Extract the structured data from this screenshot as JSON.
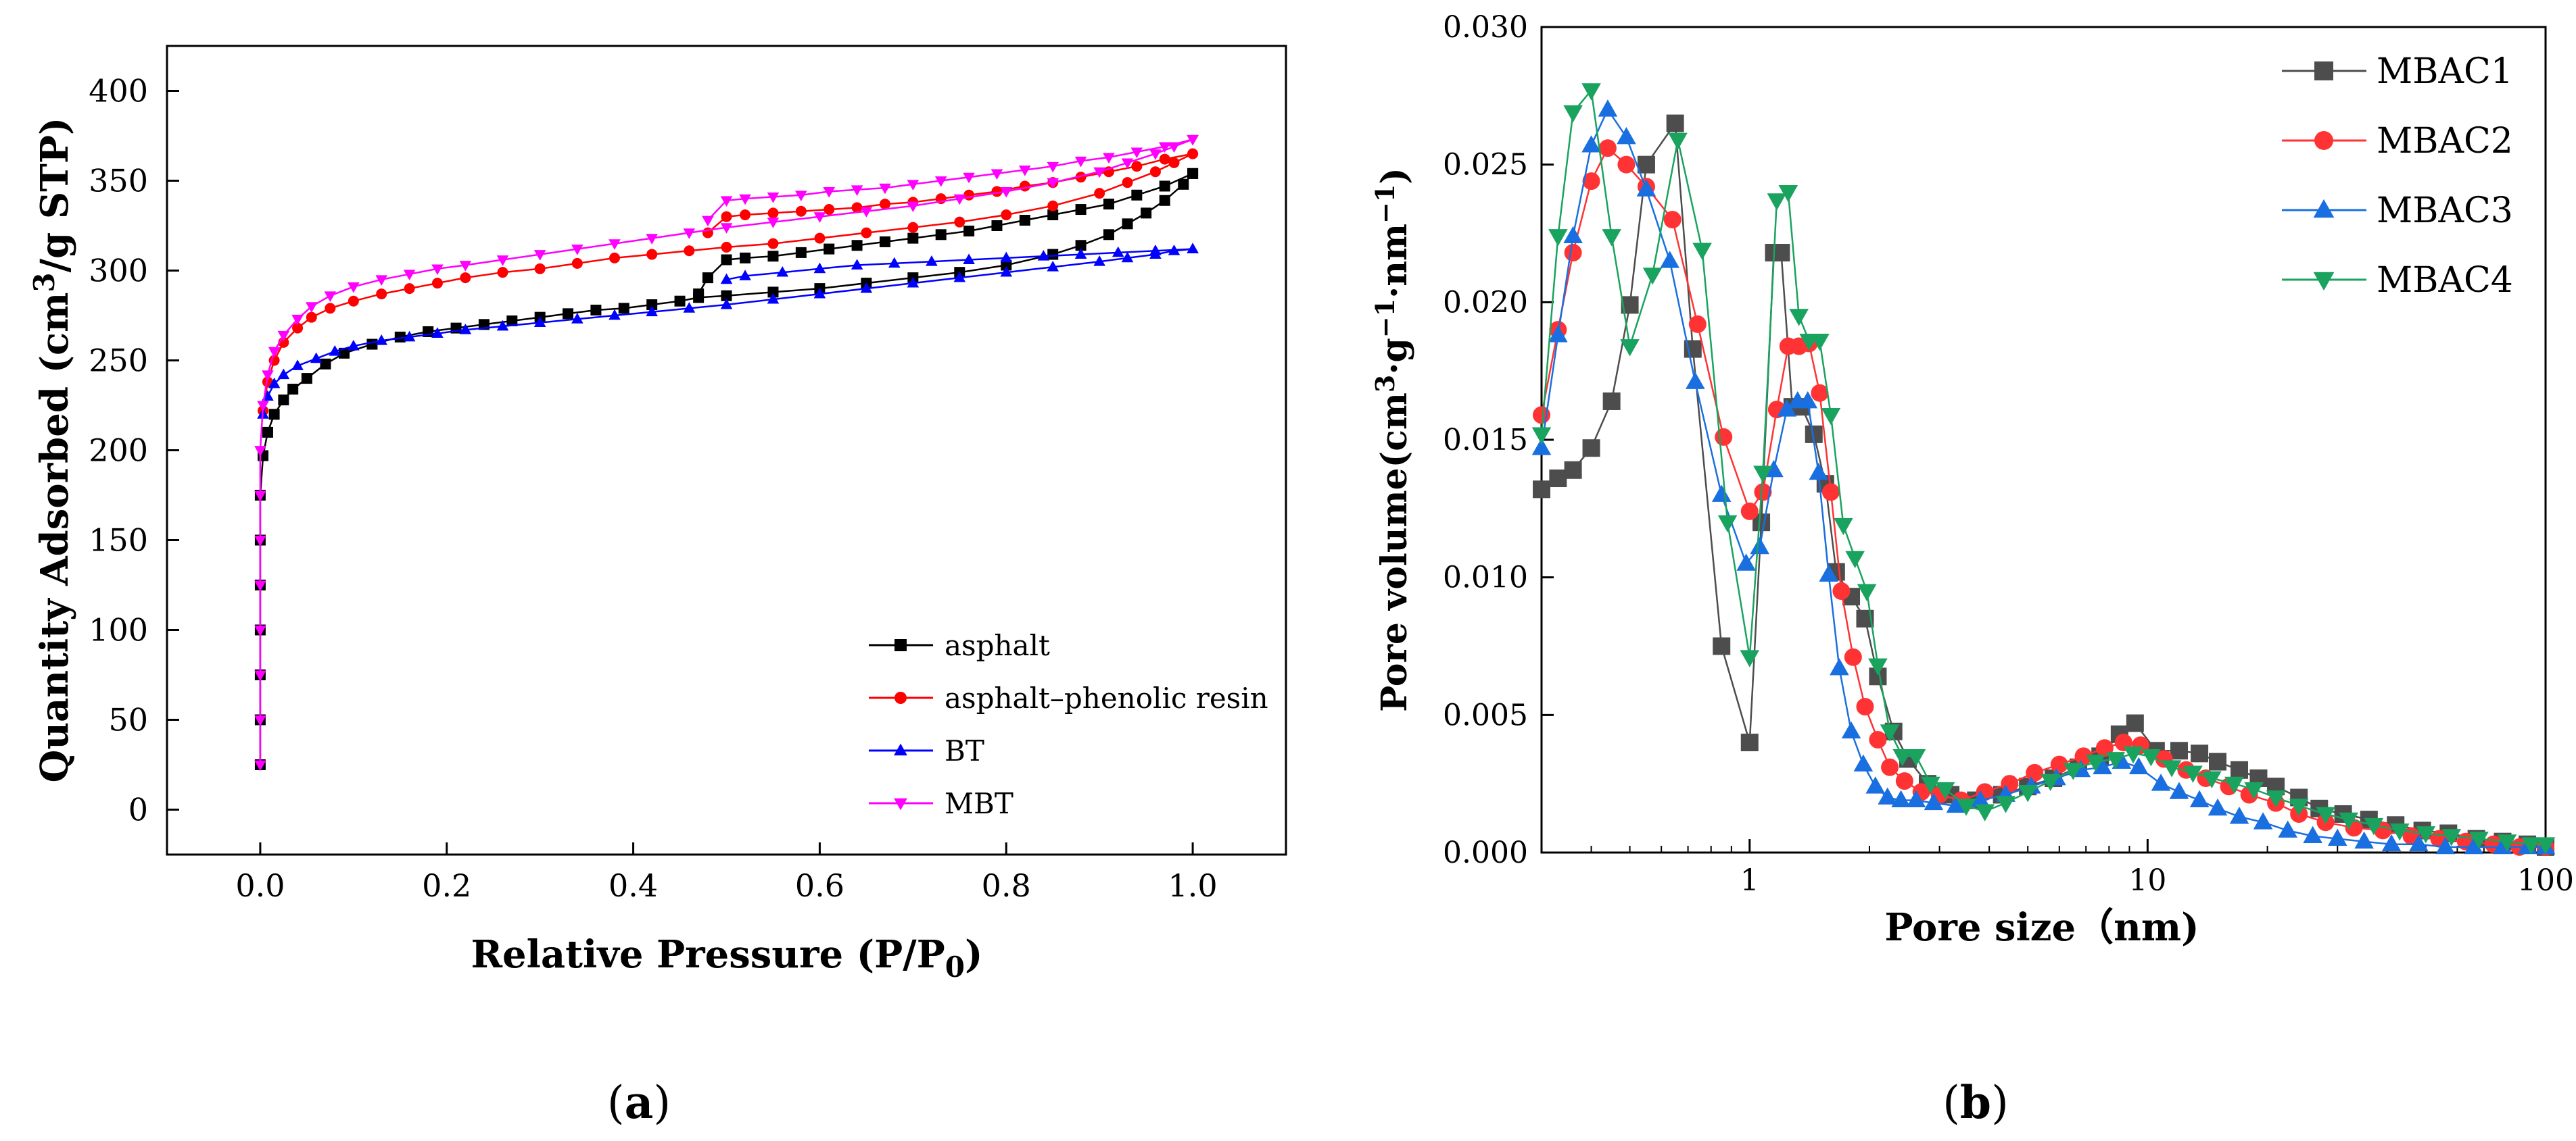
{
  "chart_data": [
    {
      "id": "a",
      "type": "line",
      "panel_label": "a",
      "xlabel": "Relative Pressure (P/P",
      "xlabel_sub": "0",
      "xlabel_end": ")",
      "ylabel": "Quantity Adsorbed (cm",
      "ylabel_sup": "3",
      "ylabel_end": "/g STP)",
      "xlim": [
        -0.1,
        1.1
      ],
      "ylim": [
        -25,
        425
      ],
      "xticks": [
        0.0,
        0.2,
        0.4,
        0.6,
        0.8,
        1.0
      ],
      "xtick_labels": [
        "0.0",
        "0.2",
        "0.4",
        "0.6",
        "0.8",
        "1.0"
      ],
      "yticks": [
        0,
        50,
        100,
        150,
        200,
        250,
        300,
        350,
        400
      ],
      "ytick_labels": [
        "0",
        "50",
        "100",
        "150",
        "200",
        "250",
        "300",
        "350",
        "400"
      ],
      "legend_position": "bottom-right",
      "series": [
        {
          "name": "asphalt",
          "color": "#000000",
          "marker": "square",
          "adsorption": {
            "x": [
              0.0,
              0.0,
              0.0,
              0.0,
              0.0,
              0.0,
              0.0,
              0.003,
              0.008,
              0.015,
              0.025,
              0.035,
              0.05,
              0.07,
              0.09,
              0.12,
              0.15,
              0.18,
              0.21,
              0.24,
              0.27,
              0.3,
              0.33,
              0.36,
              0.39,
              0.42,
              0.45,
              0.47,
              0.5,
              0.55,
              0.6,
              0.65,
              0.7,
              0.75,
              0.8,
              0.85,
              0.88,
              0.91,
              0.93,
              0.95,
              0.97,
              0.99,
              1.0
            ],
            "y": [
              25,
              50,
              75,
              100,
              125,
              150,
              175,
              197,
              210,
              220,
              228,
              234,
              240,
              248,
              254,
              259,
              263,
              266,
              268,
              270,
              272,
              274,
              276,
              278,
              279,
              281,
              283,
              285,
              286,
              288,
              290,
              293,
              296,
              299,
              303,
              309,
              314,
              320,
              326,
              332,
              339,
              348,
              354
            ]
          },
          "desorption": {
            "x": [
              1.0,
              0.97,
              0.94,
              0.91,
              0.88,
              0.85,
              0.82,
              0.79,
              0.76,
              0.73,
              0.7,
              0.67,
              0.64,
              0.61,
              0.58,
              0.55,
              0.52,
              0.5,
              0.48,
              0.47
            ],
            "y": [
              354,
              347,
              342,
              337,
              334,
              331,
              328,
              325,
              322,
              320,
              318,
              316,
              314,
              312,
              310,
              308,
              307,
              306,
              296,
              287
            ]
          }
        },
        {
          "name": "asphalt–phenolic resin",
          "color": "#ff0000",
          "marker": "circle",
          "adsorption": {
            "x": [
              0.003,
              0.008,
              0.015,
              0.025,
              0.04,
              0.055,
              0.075,
              0.1,
              0.13,
              0.16,
              0.19,
              0.22,
              0.26,
              0.3,
              0.34,
              0.38,
              0.42,
              0.46,
              0.5,
              0.55,
              0.6,
              0.65,
              0.7,
              0.75,
              0.8,
              0.85,
              0.9,
              0.93,
              0.96,
              0.98,
              1.0
            ],
            "y": [
              222,
              238,
              250,
              260,
              268,
              274,
              279,
              283,
              287,
              290,
              293,
              296,
              299,
              301,
              304,
              307,
              309,
              311,
              313,
              315,
              318,
              321,
              324,
              327,
              331,
              336,
              343,
              349,
              355,
              360,
              365
            ]
          },
          "desorption": {
            "x": [
              1.0,
              0.97,
              0.94,
              0.91,
              0.88,
              0.85,
              0.82,
              0.79,
              0.76,
              0.73,
              0.7,
              0.67,
              0.64,
              0.61,
              0.58,
              0.55,
              0.52,
              0.5,
              0.48
            ],
            "y": [
              365,
              362,
              358,
              355,
              352,
              349,
              347,
              344,
              342,
              340,
              338,
              337,
              335,
              334,
              333,
              332,
              331,
              330,
              321
            ]
          }
        },
        {
          "name": "BT",
          "color": "#0000ff",
          "marker": "triangle-up",
          "adsorption": {
            "x": [
              0.003,
              0.008,
              0.015,
              0.025,
              0.04,
              0.06,
              0.08,
              0.1,
              0.13,
              0.16,
              0.19,
              0.22,
              0.26,
              0.3,
              0.34,
              0.38,
              0.42,
              0.46,
              0.5,
              0.55,
              0.6,
              0.65,
              0.7,
              0.75,
              0.8,
              0.85,
              0.9,
              0.93,
              0.96,
              0.98,
              1.0
            ],
            "y": [
              220,
              230,
              237,
              242,
              247,
              251,
              255,
              258,
              261,
              263,
              265,
              267,
              269,
              271,
              273,
              275,
              277,
              279,
              281,
              284,
              287,
              290,
              293,
              296,
              299,
              302,
              305,
              307,
              309,
              311,
              312
            ]
          },
          "desorption": {
            "x": [
              1.0,
              0.96,
              0.92,
              0.88,
              0.84,
              0.8,
              0.76,
              0.72,
              0.68,
              0.64,
              0.6,
              0.56,
              0.52,
              0.5
            ],
            "y": [
              312,
              311,
              310,
              309,
              308,
              307,
              306,
              305,
              304,
              303,
              301,
              299,
              297,
              295
            ]
          }
        },
        {
          "name": "MBT",
          "color": "#ff00ff",
          "marker": "triangle-down",
          "adsorption": {
            "x": [
              0.0,
              0.0,
              0.0,
              0.0,
              0.0,
              0.0,
              0.0,
              0.0,
              0.003,
              0.008,
              0.015,
              0.025,
              0.04,
              0.055,
              0.075,
              0.1,
              0.13,
              0.16,
              0.19,
              0.22,
              0.26,
              0.3,
              0.34,
              0.38,
              0.42,
              0.46,
              0.5,
              0.55,
              0.6,
              0.65,
              0.7,
              0.75,
              0.8,
              0.85,
              0.9,
              0.93,
              0.96,
              0.98,
              1.0
            ],
            "y": [
              25,
              50,
              75,
              100,
              125,
              150,
              175,
              200,
              225,
              242,
              255,
              264,
              273,
              280,
              286,
              291,
              295,
              298,
              301,
              303,
              306,
              309,
              312,
              315,
              318,
              321,
              324,
              327,
              330,
              333,
              336,
              340,
              344,
              349,
              355,
              360,
              365,
              369,
              373
            ]
          },
          "desorption": {
            "x": [
              1.0,
              0.97,
              0.94,
              0.91,
              0.88,
              0.85,
              0.82,
              0.79,
              0.76,
              0.73,
              0.7,
              0.67,
              0.64,
              0.61,
              0.58,
              0.55,
              0.52,
              0.5,
              0.48
            ],
            "y": [
              373,
              369,
              366,
              363,
              361,
              358,
              356,
              354,
              352,
              350,
              348,
              346,
              345,
              344,
              342,
              341,
              340,
              339,
              328
            ]
          }
        }
      ]
    },
    {
      "id": "b",
      "type": "line",
      "panel_label": "b",
      "x_scale": "log",
      "xlabel": "Pore size（nm)",
      "ylabel": "Pore volume(cm",
      "ylabel_sup1": "3",
      "ylabel_mid1": "·g",
      "ylabel_sup2": "−1",
      "ylabel_mid2": "·nm",
      "ylabel_sup3": "−1",
      "ylabel_end": ")",
      "xlim": [
        0.3,
        100
      ],
      "ylim": [
        0,
        0.03
      ],
      "xticks": [
        1,
        10,
        100
      ],
      "xtick_labels": [
        "1",
        "10",
        "100"
      ],
      "yticks": [
        0,
        0.005,
        0.01,
        0.015,
        0.02,
        0.025,
        0.03
      ],
      "ytick_labels": [
        "0.000",
        "0.005",
        "0.010",
        "0.015",
        "0.020",
        "0.025",
        "0.030"
      ],
      "legend_position": "top-right",
      "series": [
        {
          "name": "MBAC1",
          "color": "#4d4d4d",
          "marker": "square",
          "x": [
            0.3,
            0.33,
            0.36,
            0.4,
            0.45,
            0.5,
            0.55,
            0.65,
            0.72,
            0.85,
            1.0,
            1.07,
            1.15,
            1.2,
            1.28,
            1.35,
            1.45,
            1.55,
            1.65,
            1.8,
            1.95,
            2.1,
            2.3,
            2.5,
            2.8,
            3.2,
            3.7,
            4.3,
            5.0,
            5.8,
            6.7,
            7.6,
            8.5,
            9.3,
            10.5,
            12,
            13.5,
            15,
            17,
            19,
            21,
            24,
            27,
            31,
            36,
            42,
            49,
            57,
            67,
            78,
            90,
            100
          ],
          "y": [
            0.0132,
            0.0136,
            0.0139,
            0.0147,
            0.0164,
            0.0199,
            0.025,
            0.0265,
            0.0183,
            0.0075,
            0.004,
            0.012,
            0.0218,
            0.0218,
            0.0162,
            0.0162,
            0.0152,
            0.0134,
            0.0102,
            0.0093,
            0.0085,
            0.0064,
            0.0044,
            0.0034,
            0.0025,
            0.0021,
            0.0019,
            0.0021,
            0.0024,
            0.0027,
            0.0031,
            0.0035,
            0.0043,
            0.0047,
            0.0037,
            0.0037,
            0.0036,
            0.0033,
            0.003,
            0.0027,
            0.0024,
            0.002,
            0.0016,
            0.0014,
            0.0012,
            0.001,
            0.0008,
            0.0007,
            0.0005,
            0.0004,
            0.0003,
            0.0002
          ]
        },
        {
          "name": "MBAC2",
          "color": "#ff3333",
          "marker": "circle",
          "x": [
            0.3,
            0.33,
            0.36,
            0.4,
            0.44,
            0.49,
            0.55,
            0.64,
            0.74,
            0.86,
            1.0,
            1.08,
            1.17,
            1.25,
            1.33,
            1.41,
            1.5,
            1.6,
            1.7,
            1.82,
            1.95,
            2.1,
            2.25,
            2.45,
            2.7,
            3.0,
            3.4,
            3.9,
            4.5,
            5.2,
            6.0,
            6.9,
            7.8,
            8.7,
            9.6,
            11,
            12.5,
            14,
            16,
            18,
            21,
            24,
            28,
            33,
            39,
            46,
            54,
            63,
            74,
            86,
            100
          ],
          "y": [
            0.0159,
            0.019,
            0.0218,
            0.0244,
            0.0256,
            0.025,
            0.0242,
            0.023,
            0.0192,
            0.0151,
            0.0124,
            0.0131,
            0.0161,
            0.0184,
            0.0184,
            0.0185,
            0.0167,
            0.0131,
            0.0095,
            0.0071,
            0.0053,
            0.0041,
            0.0031,
            0.0026,
            0.0022,
            0.0021,
            0.0019,
            0.0022,
            0.0025,
            0.0029,
            0.0032,
            0.0035,
            0.0038,
            0.004,
            0.0039,
            0.0034,
            0.003,
            0.0027,
            0.0024,
            0.0021,
            0.0018,
            0.0014,
            0.0011,
            0.0009,
            0.0008,
            0.0006,
            0.0005,
            0.0004,
            0.0003,
            0.0002,
            0.0002
          ]
        },
        {
          "name": "MBAC3",
          "color": "#1a6fe0",
          "marker": "triangle-up",
          "x": [
            0.3,
            0.33,
            0.36,
            0.4,
            0.44,
            0.49,
            0.55,
            0.63,
            0.73,
            0.85,
            0.98,
            1.06,
            1.15,
            1.24,
            1.32,
            1.4,
            1.49,
            1.58,
            1.68,
            1.8,
            1.93,
            2.07,
            2.22,
            2.4,
            2.62,
            2.9,
            3.3,
            3.8,
            4.4,
            5.1,
            5.9,
            6.8,
            7.7,
            8.6,
            9.5,
            10.8,
            12,
            13.5,
            15,
            17,
            19.5,
            22.5,
            26,
            30,
            35,
            41,
            48,
            56,
            66,
            78,
            90,
            100
          ],
          "y": [
            0.0147,
            0.0188,
            0.0224,
            0.0257,
            0.027,
            0.026,
            0.0241,
            0.0215,
            0.0171,
            0.013,
            0.0105,
            0.0111,
            0.0139,
            0.0161,
            0.0164,
            0.0164,
            0.0138,
            0.0101,
            0.0067,
            0.0044,
            0.0032,
            0.0024,
            0.002,
            0.0019,
            0.0019,
            0.0018,
            0.0017,
            0.0019,
            0.0021,
            0.0024,
            0.0027,
            0.003,
            0.0031,
            0.0033,
            0.0031,
            0.0025,
            0.0022,
            0.0019,
            0.0016,
            0.0013,
            0.0011,
            0.0008,
            0.0006,
            0.0005,
            0.0004,
            0.0003,
            0.0003,
            0.0002,
            0.0002,
            0.0002,
            0.0002,
            0.0002
          ]
        },
        {
          "name": "MBAC4",
          "color": "#19a35f",
          "marker": "triangle-down",
          "x": [
            0.3,
            0.33,
            0.36,
            0.4,
            0.45,
            0.5,
            0.57,
            0.66,
            0.76,
            0.88,
            1.0,
            1.08,
            1.17,
            1.25,
            1.33,
            1.41,
            1.5,
            1.6,
            1.72,
            1.84,
            1.97,
            2.1,
            2.25,
            2.42,
            2.62,
            2.85,
            3.1,
            3.5,
            3.9,
            4.4,
            5.0,
            5.7,
            6.5,
            7.4,
            8.3,
            9.2,
            10.2,
            11.5,
            13,
            14.5,
            16.5,
            18.5,
            21,
            24,
            28,
            32,
            37,
            43,
            50,
            58,
            68,
            80,
            92,
            100
          ],
          "y": [
            0.0152,
            0.0224,
            0.0269,
            0.0277,
            0.0224,
            0.0184,
            0.021,
            0.0259,
            0.0219,
            0.012,
            0.0071,
            0.0138,
            0.0237,
            0.024,
            0.0195,
            0.0186,
            0.0186,
            0.0159,
            0.0119,
            0.0107,
            0.0095,
            0.0068,
            0.0044,
            0.0035,
            0.0035,
            0.0025,
            0.0023,
            0.0017,
            0.0015,
            0.0018,
            0.0022,
            0.0026,
            0.003,
            0.0033,
            0.0034,
            0.0036,
            0.0035,
            0.0031,
            0.0029,
            0.0027,
            0.0025,
            0.0023,
            0.002,
            0.0017,
            0.0014,
            0.0012,
            0.001,
            0.0008,
            0.0007,
            0.0006,
            0.0005,
            0.0004,
            0.0003,
            0.0003
          ]
        }
      ]
    }
  ]
}
